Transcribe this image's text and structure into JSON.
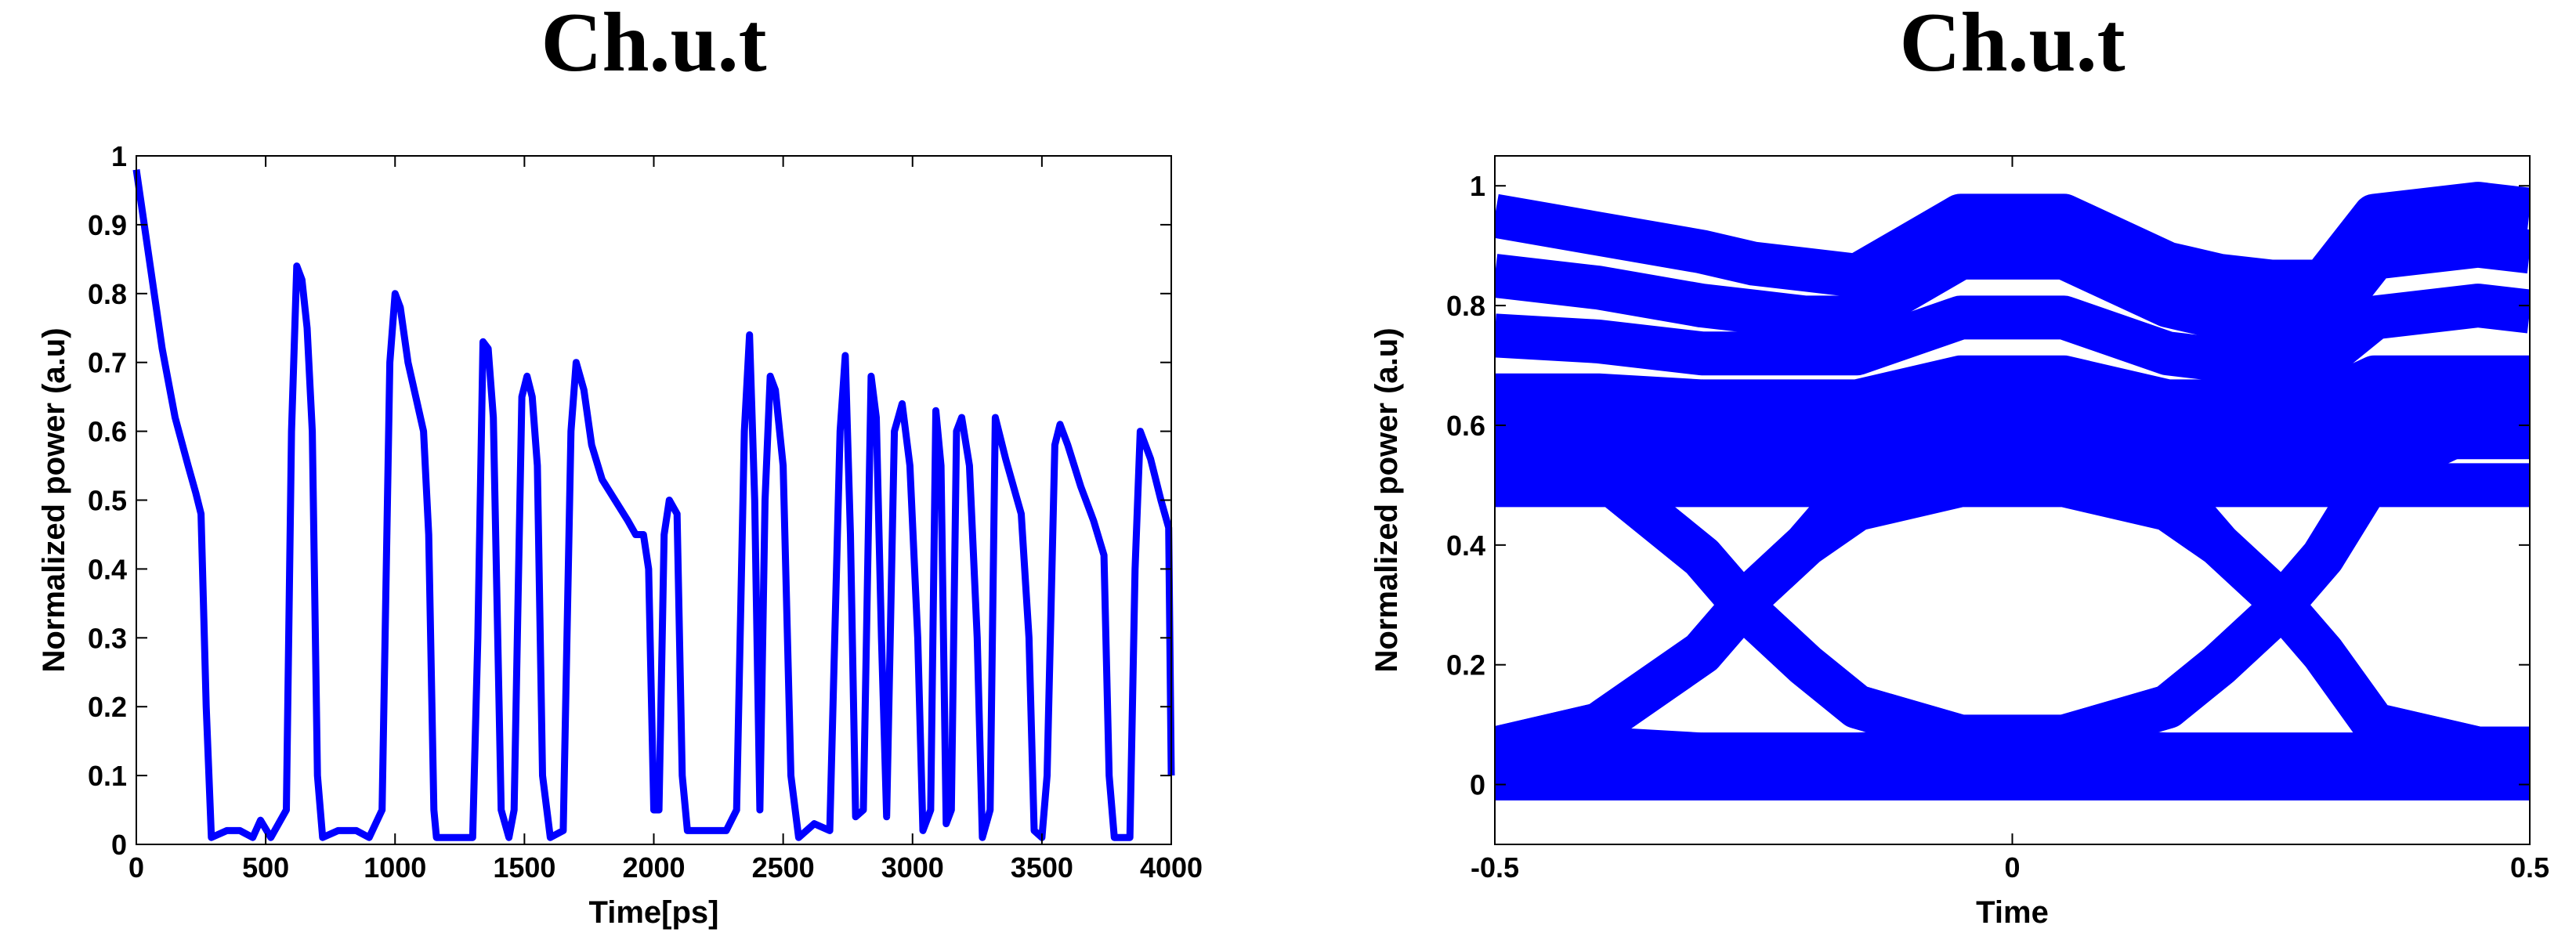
{
  "chart_data": [
    {
      "type": "line",
      "title": "Ch.u.t",
      "xlabel": "Time[ps]",
      "ylabel": "Normalized power (a.u)",
      "color": "#0000ff",
      "x": [
        0,
        50,
        100,
        150,
        200,
        230,
        250,
        270,
        290,
        350,
        400,
        450,
        480,
        520,
        580,
        600,
        620,
        640,
        660,
        680,
        700,
        720,
        780,
        850,
        900,
        950,
        980,
        1000,
        1020,
        1050,
        1080,
        1110,
        1130,
        1150,
        1160,
        1300,
        1320,
        1340,
        1360,
        1380,
        1410,
        1440,
        1460,
        1490,
        1510,
        1530,
        1550,
        1570,
        1600,
        1650,
        1680,
        1700,
        1730,
        1760,
        1800,
        1850,
        1900,
        1930,
        1960,
        1980,
        2000,
        2020,
        2040,
        2060,
        2090,
        2110,
        2130,
        2200,
        2280,
        2320,
        2350,
        2370,
        2390,
        2410,
        2430,
        2450,
        2470,
        2500,
        2530,
        2560,
        2620,
        2680,
        2720,
        2740,
        2760,
        2780,
        2810,
        2840,
        2860,
        2880,
        2900,
        2930,
        2960,
        2990,
        3020,
        3040,
        3070,
        3090,
        3110,
        3130,
        3150,
        3170,
        3190,
        3220,
        3250,
        3270,
        3300,
        3320,
        3360,
        3420,
        3450,
        3470,
        3500,
        3520,
        3550,
        3570,
        3600,
        3650,
        3700,
        3740,
        3760,
        3780,
        3840,
        3860,
        3880,
        3920,
        3960,
        3990,
        4000
      ],
      "values": [
        0.98,
        0.85,
        0.72,
        0.62,
        0.55,
        0.51,
        0.48,
        0.2,
        0.01,
        0.02,
        0.02,
        0.01,
        0.035,
        0.01,
        0.05,
        0.6,
        0.84,
        0.82,
        0.75,
        0.6,
        0.1,
        0.01,
        0.02,
        0.02,
        0.01,
        0.05,
        0.7,
        0.8,
        0.78,
        0.7,
        0.65,
        0.6,
        0.45,
        0.05,
        0.01,
        0.01,
        0.3,
        0.73,
        0.72,
        0.62,
        0.05,
        0.01,
        0.05,
        0.65,
        0.68,
        0.65,
        0.55,
        0.1,
        0.01,
        0.02,
        0.6,
        0.7,
        0.66,
        0.58,
        0.53,
        0.5,
        0.47,
        0.45,
        0.45,
        0.4,
        0.05,
        0.05,
        0.45,
        0.5,
        0.48,
        0.1,
        0.02,
        0.02,
        0.02,
        0.05,
        0.6,
        0.74,
        0.5,
        0.05,
        0.5,
        0.68,
        0.66,
        0.55,
        0.1,
        0.01,
        0.03,
        0.02,
        0.6,
        0.71,
        0.45,
        0.04,
        0.05,
        0.68,
        0.62,
        0.3,
        0.04,
        0.6,
        0.64,
        0.55,
        0.3,
        0.02,
        0.05,
        0.63,
        0.55,
        0.03,
        0.05,
        0.6,
        0.62,
        0.55,
        0.3,
        0.01,
        0.05,
        0.62,
        0.56,
        0.48,
        0.3,
        0.02,
        0.01,
        0.1,
        0.58,
        0.61,
        0.58,
        0.52,
        0.47,
        0.42,
        0.1,
        0.01,
        0.01,
        0.4,
        0.6,
        0.56,
        0.5,
        0.46,
        0.1
      ],
      "xlim": [
        0,
        4000
      ],
      "xticks": [
        0,
        500,
        1000,
        1500,
        2000,
        2500,
        3000,
        3500,
        4000
      ],
      "ylim": [
        0,
        1
      ],
      "yticks": [
        0,
        0.1,
        0.2,
        0.3,
        0.4,
        0.5,
        0.6,
        0.7,
        0.8,
        0.9,
        1
      ]
    },
    {
      "type": "eye",
      "title": "Ch.u.t",
      "xlabel": "Time",
      "ylabel": "Normalized power (a.u)",
      "color": "#0000ff",
      "x": [
        -0.5,
        -0.4,
        -0.3,
        -0.25,
        -0.2,
        -0.15,
        -0.05,
        0.05,
        0.15,
        0.2,
        0.25,
        0.3,
        0.35,
        0.45,
        0.5
      ],
      "series": [
        {
          "values": [
            0.95,
            0.92,
            0.89,
            0.87,
            0.86,
            0.85,
            0.95,
            0.95,
            0.87,
            0.85,
            0.84,
            0.84,
            0.95,
            0.97,
            0.96
          ]
        },
        {
          "values": [
            0.85,
            0.83,
            0.8,
            0.79,
            0.78,
            0.78,
            0.88,
            0.88,
            0.8,
            0.78,
            0.77,
            0.77,
            0.88,
            0.9,
            0.89
          ]
        },
        {
          "values": [
            0.75,
            0.74,
            0.72,
            0.72,
            0.72,
            0.72,
            0.78,
            0.78,
            0.72,
            0.71,
            0.71,
            0.71,
            0.78,
            0.8,
            0.79
          ]
        },
        {
          "values": [
            0.65,
            0.65,
            0.64,
            0.64,
            0.64,
            0.64,
            0.68,
            0.68,
            0.64,
            0.64,
            0.64,
            0.64,
            0.68,
            0.68,
            0.68
          ]
        },
        {
          "values": [
            0.56,
            0.56,
            0.56,
            0.56,
            0.56,
            0.56,
            0.58,
            0.58,
            0.56,
            0.56,
            0.56,
            0.56,
            0.58,
            0.58,
            0.58
          ]
        },
        {
          "values": [
            0.5,
            0.5,
            0.5,
            0.5,
            0.5,
            0.5,
            0.51,
            0.51,
            0.5,
            0.5,
            0.5,
            0.5,
            0.5,
            0.5,
            0.5
          ]
        },
        {
          "values": [
            0.6,
            0.52,
            0.38,
            0.28,
            0.2,
            0.13,
            0.08,
            0.08,
            0.13,
            0.2,
            0.28,
            0.38,
            0.52,
            0.6,
            0.6
          ]
        },
        {
          "values": [
            0.06,
            0.1,
            0.22,
            0.32,
            0.4,
            0.46,
            0.5,
            0.5,
            0.46,
            0.4,
            0.32,
            0.22,
            0.1,
            0.06,
            0.06
          ]
        },
        {
          "values": [
            0.6,
            0.52,
            0.38,
            0.28,
            0.2,
            0.13,
            0.08,
            0.06,
            0.05,
            0.05,
            0.05,
            0.05,
            0.05,
            0.05,
            0.05
          ]
        },
        {
          "values": [
            0.05,
            0.05,
            0.05,
            0.05,
            0.05,
            0.05,
            0.06,
            0.08,
            0.13,
            0.2,
            0.28,
            0.38,
            0.52,
            0.6,
            0.6
          ]
        },
        {
          "values": [
            0.06,
            0.1,
            0.22,
            0.32,
            0.4,
            0.5,
            0.6,
            0.62,
            0.62,
            0.62,
            0.62,
            0.62,
            0.62,
            0.62,
            0.62
          ]
        },
        {
          "values": [
            0.62,
            0.62,
            0.62,
            0.62,
            0.62,
            0.62,
            0.62,
            0.6,
            0.5,
            0.4,
            0.32,
            0.22,
            0.1,
            0.06,
            0.06
          ]
        },
        {
          "values": [
            0.03,
            0.03,
            0.03,
            0.03,
            0.03,
            0.03,
            0.03,
            0.03,
            0.03,
            0.03,
            0.03,
            0.03,
            0.03,
            0.03,
            0.03
          ]
        },
        {
          "values": [
            0.01,
            0.01,
            0.01,
            0.01,
            0.01,
            0.01,
            0.01,
            0.01,
            0.01,
            0.01,
            0.01,
            0.01,
            0.01,
            0.01,
            0.01
          ]
        },
        {
          "values": [
            0.06,
            0.06,
            0.05,
            0.05,
            0.05,
            0.05,
            0.05,
            0.05,
            0.05,
            0.05,
            0.05,
            0.05,
            0.05,
            0.06,
            0.06
          ]
        }
      ],
      "xlim": [
        -0.5,
        0.5
      ],
      "xticks": [
        -0.5,
        0,
        0.5
      ],
      "ylim": [
        -0.1,
        1.05
      ],
      "yticks": [
        0,
        0.2,
        0.4,
        0.6,
        0.8,
        1
      ]
    }
  ]
}
